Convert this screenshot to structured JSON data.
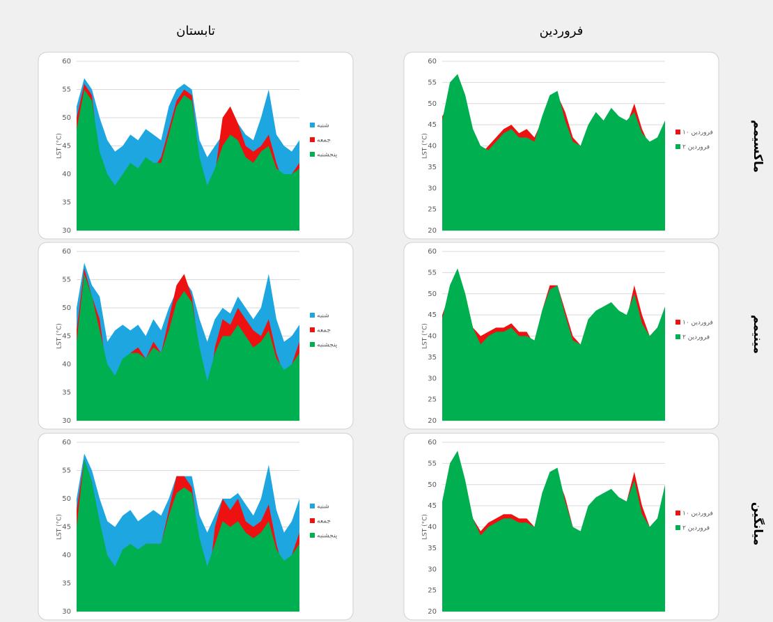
{
  "column_headers": [
    "تابستان",
    "فروردین"
  ],
  "row_headers": [
    "ماکسیمم",
    "مینیمم",
    "میانگین"
  ],
  "chart_data": [
    {
      "type": "area",
      "y_label": "LST (°C)",
      "ylim": [
        30,
        60
      ],
      "yticks": [
        30,
        35,
        40,
        45,
        50,
        55,
        60
      ],
      "grid": true,
      "series": [
        {
          "name": "شنبه",
          "color": "#1ea6e0",
          "values": [
            52,
            57,
            55,
            50,
            46,
            44,
            45,
            47,
            46,
            48,
            47,
            46,
            52,
            55,
            56,
            55,
            46,
            43,
            45,
            47,
            48,
            49,
            47,
            46,
            50,
            55,
            47,
            45,
            44,
            46
          ]
        },
        {
          "name": "جمعه",
          "color": "#ee1111",
          "values": [
            50,
            56,
            54,
            42,
            36,
            35,
            38,
            41,
            40,
            42,
            41,
            43,
            48,
            53,
            55,
            54,
            42,
            35,
            40,
            50,
            52,
            49,
            45,
            44,
            45,
            47,
            42,
            38,
            40,
            42
          ]
        },
        {
          "name": "پنجشنبه",
          "color": "#00b050",
          "values": [
            48,
            55,
            53,
            44,
            40,
            38,
            40,
            42,
            41,
            43,
            42,
            42,
            47,
            52,
            54,
            53,
            43,
            38,
            41,
            45,
            47,
            46,
            43,
            42,
            44,
            45,
            41,
            40,
            40,
            41
          ]
        }
      ]
    },
    {
      "type": "area",
      "y_label": "LST (°C)",
      "ylim": [
        20,
        60
      ],
      "yticks": [
        20,
        25,
        30,
        35,
        40,
        45,
        50,
        55,
        60
      ],
      "grid": true,
      "series": [
        {
          "name": "۱۰ فروردین",
          "color": "#ee1111",
          "values": [
            47,
            50,
            52,
            50,
            42,
            38,
            40,
            42,
            44,
            45,
            43,
            44,
            42,
            46,
            50,
            52,
            48,
            42,
            40,
            44,
            46,
            44,
            48,
            47,
            45,
            50,
            44,
            40,
            42,
            45
          ]
        },
        {
          "name": "۲ فروردین",
          "color": "#00b050",
          "values": [
            46,
            55,
            57,
            52,
            44,
            40,
            39,
            41,
            43,
            44,
            42,
            42,
            41,
            47,
            52,
            53,
            46,
            41,
            40,
            45,
            48,
            46,
            49,
            47,
            46,
            48,
            43,
            41,
            42,
            46
          ]
        }
      ]
    },
    {
      "type": "area",
      "y_label": "LST (°C)",
      "ylim": [
        30,
        60
      ],
      "yticks": [
        30,
        35,
        40,
        45,
        50,
        55,
        60
      ],
      "grid": true,
      "series": [
        {
          "name": "شنبه",
          "color": "#1ea6e0",
          "values": [
            50,
            58,
            54,
            52,
            44,
            46,
            47,
            46,
            47,
            45,
            48,
            46,
            50,
            53,
            55,
            53,
            48,
            44,
            48,
            50,
            49,
            52,
            50,
            48,
            50,
            56,
            48,
            44,
            45,
            47
          ]
        },
        {
          "name": "جمعه",
          "color": "#ee1111",
          "values": [
            46,
            57,
            52,
            48,
            38,
            36,
            40,
            42,
            43,
            41,
            44,
            42,
            48,
            54,
            56,
            52,
            42,
            33,
            43,
            48,
            47,
            50,
            48,
            46,
            45,
            48,
            42,
            38,
            40,
            44
          ]
        },
        {
          "name": "پنجشنبه",
          "color": "#00b050",
          "values": [
            44,
            56,
            52,
            46,
            40,
            38,
            41,
            42,
            42,
            41,
            43,
            42,
            46,
            51,
            53,
            51,
            43,
            37,
            42,
            45,
            45,
            47,
            45,
            43,
            44,
            46,
            41,
            39,
            40,
            42
          ]
        }
      ]
    },
    {
      "type": "area",
      "y_label": "LST (°C)",
      "ylim": [
        20,
        60
      ],
      "yticks": [
        20,
        25,
        30,
        35,
        40,
        45,
        50,
        55,
        60
      ],
      "grid": true,
      "series": [
        {
          "name": "۱۰ فروردین",
          "color": "#ee1111",
          "values": [
            45,
            50,
            52,
            49,
            42,
            40,
            41,
            42,
            42,
            43,
            41,
            41,
            38,
            46,
            52,
            52,
            46,
            40,
            38,
            43,
            45,
            46,
            47,
            46,
            44,
            52,
            45,
            40,
            42,
            46
          ]
        },
        {
          "name": "۲ فروردین",
          "color": "#00b050",
          "values": [
            44,
            52,
            56,
            50,
            42,
            38,
            40,
            41,
            41,
            42,
            40,
            40,
            39,
            46,
            51,
            52,
            45,
            39,
            38,
            44,
            46,
            47,
            48,
            46,
            45,
            50,
            43,
            40,
            42,
            47
          ]
        }
      ]
    },
    {
      "type": "area",
      "y_label": "LST (°C)",
      "ylim": [
        30,
        60
      ],
      "yticks": [
        30,
        35,
        40,
        45,
        50,
        55,
        60
      ],
      "grid": true,
      "series": [
        {
          "name": "شنبه",
          "color": "#1ea6e0",
          "values": [
            50,
            58,
            55,
            50,
            46,
            45,
            47,
            48,
            46,
            47,
            48,
            47,
            50,
            54,
            54,
            54,
            47,
            44,
            47,
            50,
            50,
            51,
            49,
            47,
            50,
            56,
            48,
            44,
            46,
            50
          ]
        },
        {
          "name": "جمعه",
          "color": "#ee1111",
          "values": [
            48,
            57,
            53,
            45,
            36,
            35,
            39,
            41,
            40,
            42,
            42,
            42,
            48,
            54,
            54,
            52,
            42,
            33,
            45,
            50,
            48,
            50,
            46,
            45,
            46,
            49,
            42,
            37,
            40,
            44
          ]
        },
        {
          "name": "پنجشنبه",
          "color": "#00b050",
          "values": [
            45,
            57,
            53,
            46,
            40,
            38,
            41,
            42,
            41,
            42,
            42,
            42,
            47,
            51,
            52,
            51,
            43,
            38,
            42,
            46,
            45,
            46,
            44,
            43,
            44,
            46,
            41,
            39,
            40,
            42
          ]
        }
      ]
    },
    {
      "type": "area",
      "y_label": "LST (°C)",
      "ylim": [
        20,
        60
      ],
      "yticks": [
        20,
        25,
        30,
        35,
        40,
        45,
        50,
        55,
        60
      ],
      "grid": true,
      "series": [
        {
          "name": "۱۰ فروردین",
          "color": "#ee1111",
          "values": [
            44,
            50,
            54,
            50,
            42,
            39,
            41,
            42,
            43,
            43,
            42,
            42,
            40,
            47,
            51,
            52,
            47,
            40,
            38,
            43,
            46,
            47,
            48,
            47,
            46,
            53,
            45,
            40,
            42,
            46
          ]
        },
        {
          "name": "۲ فروردین",
          "color": "#00b050",
          "values": [
            46,
            55,
            58,
            51,
            42,
            38,
            40,
            41,
            42,
            42,
            41,
            41,
            40,
            48,
            53,
            54,
            46,
            40,
            39,
            45,
            47,
            48,
            49,
            47,
            46,
            51,
            43,
            40,
            42,
            50
          ]
        }
      ]
    }
  ]
}
